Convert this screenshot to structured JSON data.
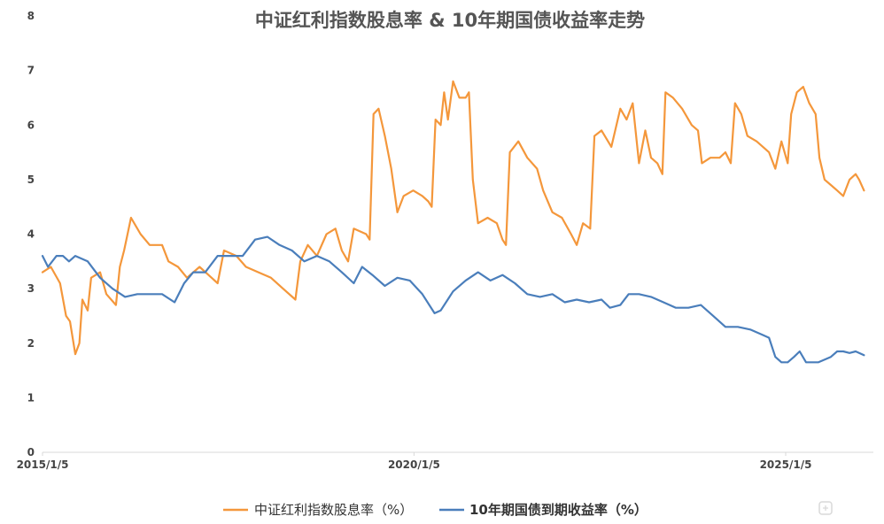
{
  "chart_data": {
    "type": "line",
    "title": "中证红利指数股息率 & 10年期国债收益率走势",
    "xlabel": "",
    "ylabel": "",
    "ylim": [
      0,
      8
    ],
    "yticks": [
      "0",
      "1",
      "2",
      "3",
      "4",
      "5",
      "6",
      "7",
      "8"
    ],
    "xlim": [
      "2015/1/5",
      "2025/9/5"
    ],
    "xticks": [
      "2015/1/5",
      "2020/1/5",
      "2025/1/5"
    ],
    "grid": false,
    "legend": "bottom",
    "series": [
      {
        "name": "中证红利指数股息率（%）",
        "color": "#F4973B",
        "points": [
          [
            "2015/1/5",
            3.3
          ],
          [
            "2015/2/15",
            3.4
          ],
          [
            "2015/4/1",
            3.1
          ],
          [
            "2015/5/1",
            2.5
          ],
          [
            "2015/5/20",
            2.4
          ],
          [
            "2015/6/15",
            1.8
          ],
          [
            "2015/7/5",
            2.0
          ],
          [
            "2015/7/20",
            2.8
          ],
          [
            "2015/8/15",
            2.6
          ],
          [
            "2015/9/1",
            3.2
          ],
          [
            "2015/10/15",
            3.3
          ],
          [
            "2015/11/15",
            2.9
          ],
          [
            "2016/1/1",
            2.7
          ],
          [
            "2016/1/20",
            3.4
          ],
          [
            "2016/2/10",
            3.7
          ],
          [
            "2016/3/15",
            4.3
          ],
          [
            "2016/5/1",
            4.0
          ],
          [
            "2016/6/15",
            3.8
          ],
          [
            "2016/8/15",
            3.8
          ],
          [
            "2016/9/15",
            3.5
          ],
          [
            "2016/11/1",
            3.4
          ],
          [
            "2016/12/15",
            3.2
          ],
          [
            "2017/2/15",
            3.4
          ],
          [
            "2017/4/15",
            3.2
          ],
          [
            "2017/5/15",
            3.1
          ],
          [
            "2017/6/15",
            3.7
          ],
          [
            "2017/8/15",
            3.6
          ],
          [
            "2017/10/1",
            3.4
          ],
          [
            "2017/12/1",
            3.3
          ],
          [
            "2018/2/1",
            3.2
          ],
          [
            "2018/4/1",
            3.0
          ],
          [
            "2018/6/1",
            2.8
          ],
          [
            "2018/6/25",
            3.5
          ],
          [
            "2018/8/1",
            3.8
          ],
          [
            "2018/9/15",
            3.6
          ],
          [
            "2018/11/1",
            4.0
          ],
          [
            "2018/12/15",
            4.1
          ],
          [
            "2019/1/15",
            3.7
          ],
          [
            "2019/2/15",
            3.5
          ],
          [
            "2019/3/15",
            4.1
          ],
          [
            "2019/5/15",
            4.0
          ],
          [
            "2019/6/1",
            3.9
          ],
          [
            "2019/6/20",
            6.2
          ],
          [
            "2019/7/15",
            6.3
          ],
          [
            "2019/8/15",
            5.8
          ],
          [
            "2019/9/15",
            5.2
          ],
          [
            "2019/10/15",
            4.4
          ],
          [
            "2019/11/15",
            4.7
          ],
          [
            "2020/1/1",
            4.8
          ],
          [
            "2020/2/15",
            4.7
          ],
          [
            "2020/3/15",
            4.6
          ],
          [
            "2020/4/1",
            4.5
          ],
          [
            "2020/4/20",
            6.1
          ],
          [
            "2020/5/15",
            6.0
          ],
          [
            "2020/6/1",
            6.6
          ],
          [
            "2020/6/20",
            6.1
          ],
          [
            "2020/7/15",
            6.8
          ],
          [
            "2020/8/15",
            6.5
          ],
          [
            "2020/9/15",
            6.5
          ],
          [
            "2020/10/1",
            6.6
          ],
          [
            "2020/10/20",
            5.0
          ],
          [
            "2020/11/15",
            4.2
          ],
          [
            "2021/1/1",
            4.3
          ],
          [
            "2021/2/15",
            4.2
          ],
          [
            "2021/3/15",
            3.9
          ],
          [
            "2021/4/1",
            3.8
          ],
          [
            "2021/4/20",
            5.5
          ],
          [
            "2021/6/1",
            5.7
          ],
          [
            "2021/7/15",
            5.4
          ],
          [
            "2021/9/1",
            5.2
          ],
          [
            "2021/10/1",
            4.8
          ],
          [
            "2021/11/15",
            4.4
          ],
          [
            "2022/1/1",
            4.3
          ],
          [
            "2022/2/15",
            4.0
          ],
          [
            "2022/3/15",
            3.8
          ],
          [
            "2022/4/15",
            4.2
          ],
          [
            "2022/5/20",
            4.1
          ],
          [
            "2022/6/10",
            5.8
          ],
          [
            "2022/7/15",
            5.9
          ],
          [
            "2022/9/1",
            5.6
          ],
          [
            "2022/10/15",
            6.3
          ],
          [
            "2022/11/15",
            6.1
          ],
          [
            "2022/12/15",
            6.4
          ],
          [
            "2023/1/15",
            5.3
          ],
          [
            "2023/2/15",
            5.9
          ],
          [
            "2023/3/15",
            5.4
          ],
          [
            "2023/4/15",
            5.3
          ],
          [
            "2023/5/10",
            5.1
          ],
          [
            "2023/5/25",
            6.6
          ],
          [
            "2023/7/1",
            6.5
          ],
          [
            "2023/8/15",
            6.3
          ],
          [
            "2023/10/1",
            6.0
          ],
          [
            "2023/11/1",
            5.9
          ],
          [
            "2023/11/20",
            5.3
          ],
          [
            "2024/1/1",
            5.4
          ],
          [
            "2024/2/15",
            5.4
          ],
          [
            "2024/3/15",
            5.5
          ],
          [
            "2024/4/10",
            5.3
          ],
          [
            "2024/5/1",
            6.4
          ],
          [
            "2024/6/1",
            6.2
          ],
          [
            "2024/7/1",
            5.8
          ],
          [
            "2024/8/15",
            5.7
          ],
          [
            "2024/9/15",
            5.6
          ],
          [
            "2024/10/15",
            5.5
          ],
          [
            "2024/11/15",
            5.2
          ],
          [
            "2024/12/15",
            5.7
          ],
          [
            "2025/1/15",
            5.3
          ],
          [
            "2025/2/1",
            6.2
          ],
          [
            "2025/3/1",
            6.6
          ],
          [
            "2025/4/1",
            6.7
          ],
          [
            "2025/5/1",
            6.4
          ],
          [
            "2025/6/1",
            6.2
          ],
          [
            "2025/6/20",
            5.4
          ],
          [
            "2025/7/15",
            5.0
          ],
          [
            "2025/8/15",
            4.9
          ],
          [
            "2025/9/15",
            4.8
          ],
          [
            "2025/10/15",
            4.7
          ],
          [
            "2025/11/15",
            5.0
          ],
          [
            "2025/12/15",
            5.1
          ],
          [
            "2026/1/1",
            5.0
          ],
          [
            "2026/1/25",
            4.8
          ]
        ]
      },
      {
        "name": "10年期国债到期收益率（%）",
        "color": "#4A7EBB",
        "points": [
          [
            "2015/1/5",
            3.6
          ],
          [
            "2015/2/1",
            3.4
          ],
          [
            "2015/3/15",
            3.6
          ],
          [
            "2015/4/15",
            3.6
          ],
          [
            "2015/5/15",
            3.5
          ],
          [
            "2015/6/15",
            3.6
          ],
          [
            "2015/8/15",
            3.5
          ],
          [
            "2015/10/15",
            3.2
          ],
          [
            "2015/12/15",
            3.0
          ],
          [
            "2016/2/15",
            2.85
          ],
          [
            "2016/4/15",
            2.9
          ],
          [
            "2016/6/15",
            2.9
          ],
          [
            "2016/8/15",
            2.9
          ],
          [
            "2016/10/15",
            2.75
          ],
          [
            "2016/12/1",
            3.1
          ],
          [
            "2017/1/15",
            3.3
          ],
          [
            "2017/3/15",
            3.3
          ],
          [
            "2017/5/15",
            3.6
          ],
          [
            "2017/7/15",
            3.6
          ],
          [
            "2017/9/15",
            3.6
          ],
          [
            "2017/11/15",
            3.9
          ],
          [
            "2018/1/15",
            3.95
          ],
          [
            "2018/3/15",
            3.8
          ],
          [
            "2018/5/15",
            3.7
          ],
          [
            "2018/7/15",
            3.5
          ],
          [
            "2018/9/15",
            3.6
          ],
          [
            "2018/11/15",
            3.5
          ],
          [
            "2019/1/15",
            3.3
          ],
          [
            "2019/3/15",
            3.1
          ],
          [
            "2019/4/25",
            3.4
          ],
          [
            "2019/6/15",
            3.25
          ],
          [
            "2019/8/15",
            3.05
          ],
          [
            "2019/10/15",
            3.2
          ],
          [
            "2019/12/15",
            3.15
          ],
          [
            "2020/2/15",
            2.9
          ],
          [
            "2020/4/15",
            2.55
          ],
          [
            "2020/5/15",
            2.6
          ],
          [
            "2020/7/15",
            2.95
          ],
          [
            "2020/9/15",
            3.15
          ],
          [
            "2020/11/15",
            3.3
          ],
          [
            "2021/1/15",
            3.15
          ],
          [
            "2021/3/15",
            3.25
          ],
          [
            "2021/5/15",
            3.1
          ],
          [
            "2021/7/15",
            2.9
          ],
          [
            "2021/9/15",
            2.85
          ],
          [
            "2021/11/15",
            2.9
          ],
          [
            "2022/1/15",
            2.75
          ],
          [
            "2022/3/15",
            2.8
          ],
          [
            "2022/5/15",
            2.75
          ],
          [
            "2022/7/15",
            2.8
          ],
          [
            "2022/8/25",
            2.65
          ],
          [
            "2022/10/15",
            2.7
          ],
          [
            "2022/11/25",
            2.9
          ],
          [
            "2023/1/15",
            2.9
          ],
          [
            "2023/3/15",
            2.85
          ],
          [
            "2023/5/15",
            2.75
          ],
          [
            "2023/7/15",
            2.65
          ],
          [
            "2023/9/15",
            2.65
          ],
          [
            "2023/11/15",
            2.7
          ],
          [
            "2024/1/15",
            2.5
          ],
          [
            "2024/3/15",
            2.3
          ],
          [
            "2024/5/15",
            2.3
          ],
          [
            "2024/7/15",
            2.25
          ],
          [
            "2024/9/15",
            2.15
          ],
          [
            "2024/10/15",
            2.1
          ],
          [
            "2024/11/15",
            1.75
          ],
          [
            "2024/12/15",
            1.65
          ],
          [
            "2025/1/15",
            1.65
          ],
          [
            "2025/2/15",
            1.75
          ],
          [
            "2025/3/15",
            1.85
          ],
          [
            "2025/4/15",
            1.65
          ],
          [
            "2025/6/15",
            1.65
          ],
          [
            "2025/8/15",
            1.75
          ],
          [
            "2025/9/15",
            1.85
          ],
          [
            "2025/10/15",
            1.85
          ],
          [
            "2025/11/15",
            1.82
          ],
          [
            "2025/12/15",
            1.85
          ],
          [
            "2026/1/25",
            1.78
          ]
        ]
      }
    ]
  }
}
